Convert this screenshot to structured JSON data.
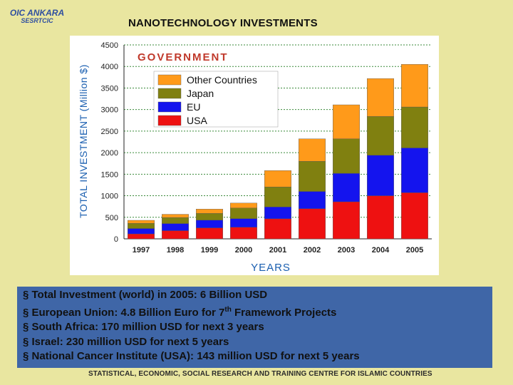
{
  "header": {
    "logo_line1": "OIC ANKARA",
    "logo_line2": "SESRTCIC",
    "title": "NANOTECHNOLOGY INVESTMENTS"
  },
  "chart_data": {
    "type": "bar",
    "stacked": true,
    "title": "GOVERNMENT",
    "xlabel": "YEARS",
    "ylabel": "TOTAL INVESTMENT (Million $)",
    "ylim": [
      0,
      4500
    ],
    "yticks": [
      0,
      500,
      1000,
      1500,
      2000,
      2500,
      3000,
      3500,
      4000,
      4500
    ],
    "grid": "horizontal dashed",
    "legend_position": "top-left",
    "categories": [
      "1997",
      "1998",
      "1999",
      "2000",
      "2001",
      "2002",
      "2003",
      "2004",
      "2005"
    ],
    "series": [
      {
        "name": "USA",
        "color": "#ee1111",
        "values": [
          115,
          190,
          255,
          270,
          465,
          700,
          860,
          1000,
          1070
        ]
      },
      {
        "name": "EU",
        "color": "#1414ee",
        "values": [
          125,
          165,
          180,
          200,
          275,
          400,
          660,
          940,
          1040
        ]
      },
      {
        "name": "Japan",
        "color": "#808010",
        "values": [
          120,
          140,
          155,
          245,
          465,
          700,
          800,
          900,
          950
        ]
      },
      {
        "name": "Other Countries",
        "color": "#ff9a1a",
        "values": [
          70,
          75,
          100,
          115,
          380,
          520,
          790,
          880,
          990
        ]
      }
    ],
    "legend_order": [
      "Other Countries",
      "Japan",
      "EU",
      "USA"
    ]
  },
  "bullets": [
    {
      "prefix": "§ Total Investment (world) in 2005: 6 Billion USD",
      "sup": "",
      "suffix": ""
    },
    {
      "prefix": "§ European Union: 4.8 Billion Euro for 7",
      "sup": "th",
      "suffix": " Framework Projects"
    },
    {
      "prefix": "§ South Africa: 170 million USD for next 3 years",
      "sup": "",
      "suffix": ""
    },
    {
      "prefix": "§ Israel: 230 million USD for next 5 years",
      "sup": "",
      "suffix": ""
    },
    {
      "prefix": "§ National Cancer Institute (USA): 143 million USD for next 5 years",
      "sup": "",
      "suffix": ""
    }
  ],
  "footer": {
    "text": "STATISTICAL, ECONOMIC, SOCIAL RESEARCH AND TRAINING CENTRE FOR ISLAMIC COUNTRIES"
  }
}
